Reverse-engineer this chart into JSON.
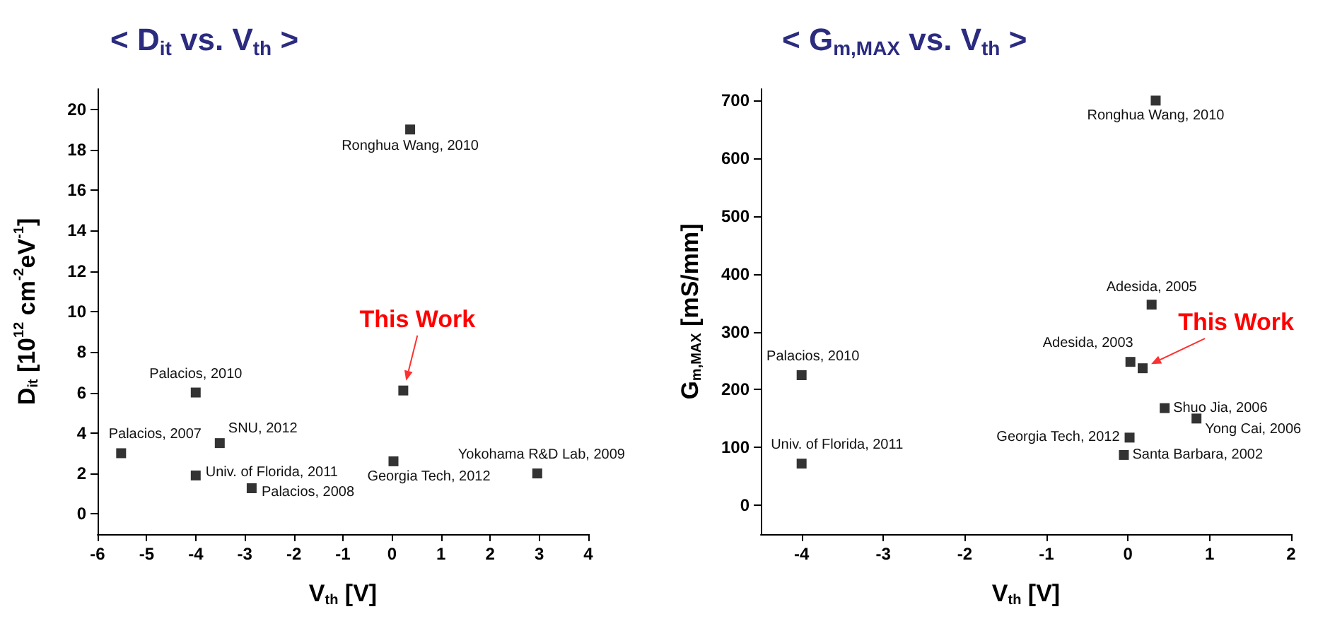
{
  "chart_data": [
    {
      "type": "scatter",
      "title": "< D$_{it}$ vs. V$_{th}$ >",
      "xlabel": "V$_{th}$ [V]",
      "ylabel": "D$_{it}$ [10$^{12}$ cm$^{-2}$eV$^{-1}$]",
      "color": "#000000",
      "marker": "square",
      "grid": false,
      "x": [
        0.37,
        0.23,
        -4,
        -5.52,
        -3.51,
        -4,
        -2.86,
        0.03,
        2.96
      ],
      "values": [
        19.0,
        6.1,
        6.0,
        3.0,
        3.5,
        1.9,
        1.27,
        2.6,
        2.0
      ],
      "xlim": [
        -6,
        4
      ],
      "xticks": [
        -6,
        -5,
        -4,
        -3,
        -2,
        -1,
        0,
        1,
        2,
        3,
        4
      ],
      "ylim": [
        -1,
        21
      ],
      "yticks": [
        0,
        2,
        4,
        6,
        8,
        10,
        12,
        14,
        16,
        18,
        20
      ],
      "annotations": [
        {
          "text": "Ronghua Wang, 2010",
          "x": 0.37,
          "y": 19.0
        },
        {
          "text": "This Work",
          "x": 0.23,
          "y": 6.1
        },
        {
          "text": "Palacios, 2010",
          "x": -4,
          "y": 6.0
        },
        {
          "text": "Palacios, 2007",
          "x": -5.52,
          "y": 3.0
        },
        {
          "text": "SNU, 2012",
          "x": -3.51,
          "y": 3.5
        },
        {
          "text": "Univ. of Florida, 2011",
          "x": -4,
          "y": 1.9
        },
        {
          "text": "Palacios, 2008",
          "x": -2.86,
          "y": 1.27
        },
        {
          "text": "Georgia Tech, 2012",
          "x": 0.03,
          "y": 2.6
        },
        {
          "text": "Yokohama R&D Lab, 2009",
          "x": 2.96,
          "y": 2.0
        }
      ]
    },
    {
      "type": "scatter",
      "title": "< G$_{m,MAX}$ vs. V$_{th}$ >",
      "xlabel": "V$_{th}$ [V]",
      "ylabel": "G$_{m,MAX}$ [mS/mm]",
      "color": "#000000",
      "marker": "square",
      "grid": false,
      "x": [
        0.34,
        0.29,
        0.03,
        0.18,
        -4,
        -4,
        0.45,
        0.84,
        0.02,
        -0.05
      ],
      "values": [
        700,
        347,
        248,
        237,
        225,
        72,
        168,
        150,
        117,
        87
      ],
      "xlim": [
        -4.5,
        2
      ],
      "xticks": [
        -4,
        -3,
        -2,
        -1,
        0,
        1,
        2
      ],
      "ylim": [
        -50,
        720
      ],
      "yticks": [
        0,
        100,
        200,
        300,
        400,
        500,
        600,
        700
      ],
      "annotations": [
        {
          "text": "Ronghua Wang, 2010",
          "x": 0.34,
          "y": 700
        },
        {
          "text": "Adesida, 2005",
          "x": 0.29,
          "y": 347
        },
        {
          "text": "Adesida, 2003",
          "x": 0.03,
          "y": 248
        },
        {
          "text": "This Work",
          "x": 0.18,
          "y": 237
        },
        {
          "text": "Palacios, 2010",
          "x": -4,
          "y": 225
        },
        {
          "text": "Univ. of Florida, 2011",
          "x": -4,
          "y": 72
        },
        {
          "text": "Shuo Jia, 2006",
          "x": 0.45,
          "y": 168
        },
        {
          "text": "Yong Cai, 2006",
          "x": 0.84,
          "y": 150
        },
        {
          "text": "Georgia Tech, 2012",
          "x": 0.02,
          "y": 117
        },
        {
          "text": "Santa Barbara, 2002",
          "x": -0.05,
          "y": 87
        }
      ]
    }
  ]
}
